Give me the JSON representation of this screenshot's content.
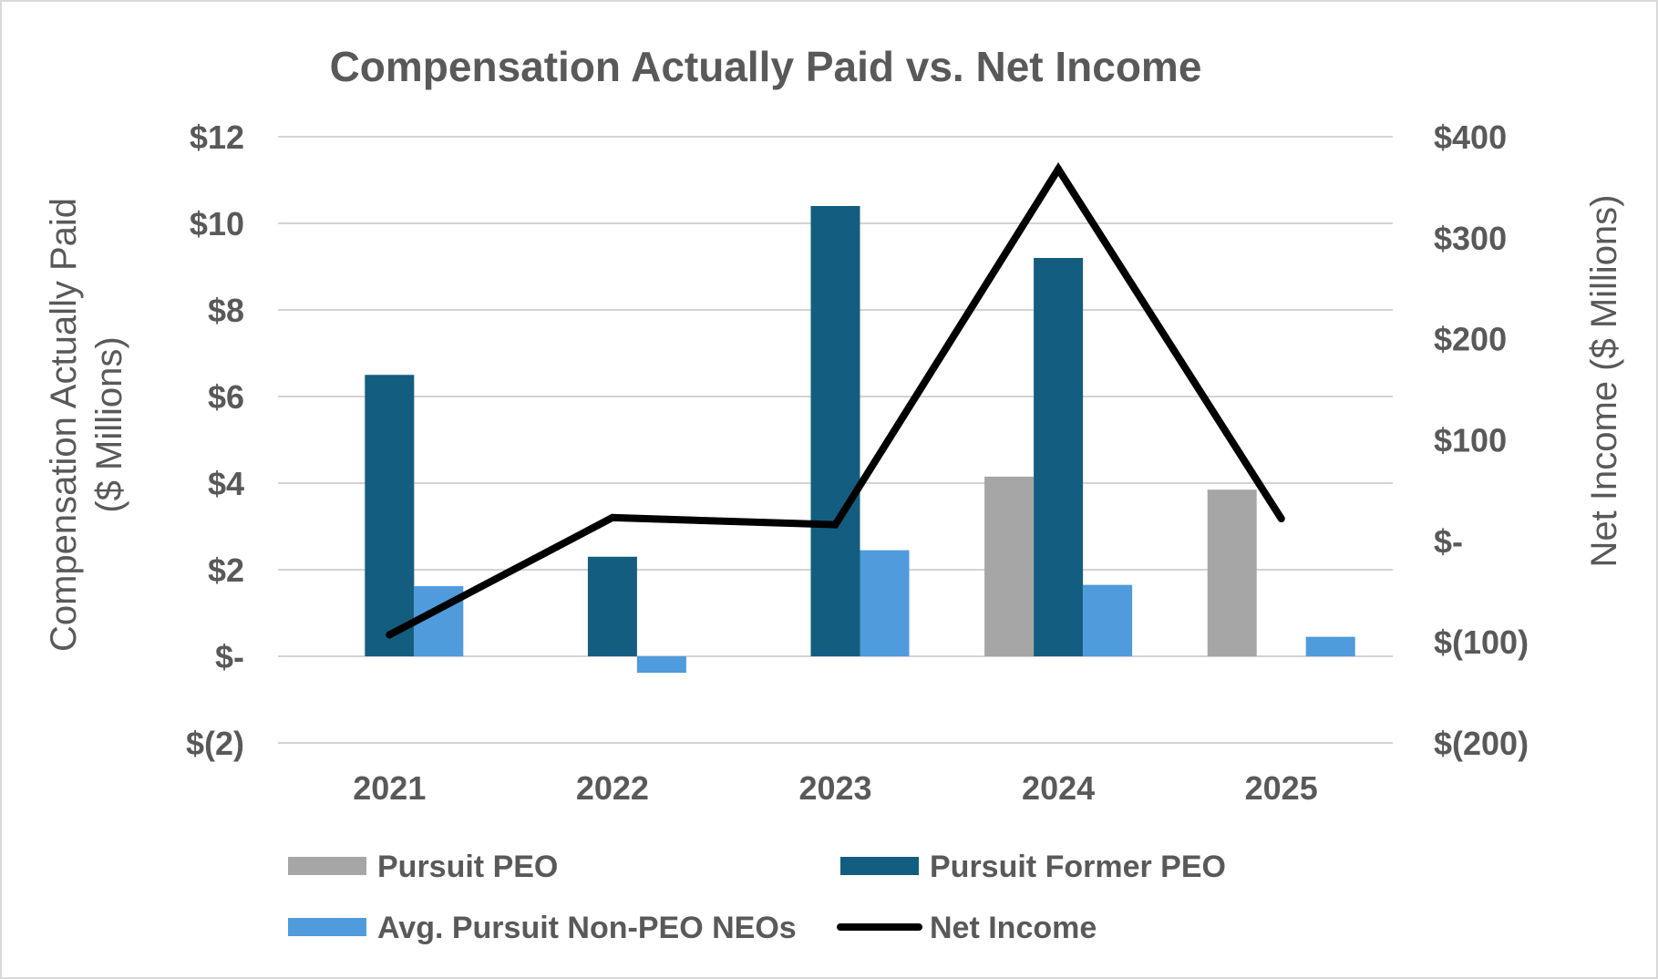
{
  "chart_data": {
    "type": "bar",
    "title": "Compensation Actually Paid vs. Net Income",
    "categories": [
      "2021",
      "2022",
      "2023",
      "2024",
      "2025"
    ],
    "series": [
      {
        "name": "Pursuit PEO",
        "axis": "left",
        "type": "bar",
        "color": "#a6a6a6",
        "values": [
          null,
          null,
          null,
          4.15,
          3.85
        ]
      },
      {
        "name": "Pursuit Former PEO",
        "axis": "left",
        "type": "bar",
        "color": "#135e80",
        "values": [
          6.5,
          2.3,
          10.4,
          9.2,
          null
        ]
      },
      {
        "name": "Avg. Pursuit Non-PEO NEOs",
        "axis": "left",
        "type": "bar",
        "color": "#4f9bdb",
        "values": [
          1.62,
          -0.38,
          2.45,
          1.65,
          0.45
        ]
      },
      {
        "name": "Net Income",
        "axis": "right",
        "type": "line",
        "color": "#000000",
        "values": [
          -93,
          23,
          16,
          368,
          22
        ]
      }
    ],
    "left_axis": {
      "label_line1": "Compensation Actually Paid",
      "label_line2": "($ Millions)",
      "ylim": [
        -2,
        12
      ],
      "ticks": [
        12,
        10,
        8,
        6,
        4,
        2,
        0,
        -2
      ],
      "tick_labels": [
        "$12",
        "$10",
        "$8",
        "$6",
        "$4",
        "$2",
        "$-",
        "$(2)"
      ]
    },
    "right_axis": {
      "label": "Net Income ($ Millions)",
      "ylim": [
        -200,
        400
      ],
      "ticks": [
        400,
        300,
        200,
        100,
        0,
        -100,
        -200
      ],
      "tick_labels": [
        "$400",
        "$300",
        "$200",
        "$100",
        "$-",
        "$(100)",
        "$(200)"
      ]
    },
    "grid": true,
    "legend_position": "bottom"
  }
}
